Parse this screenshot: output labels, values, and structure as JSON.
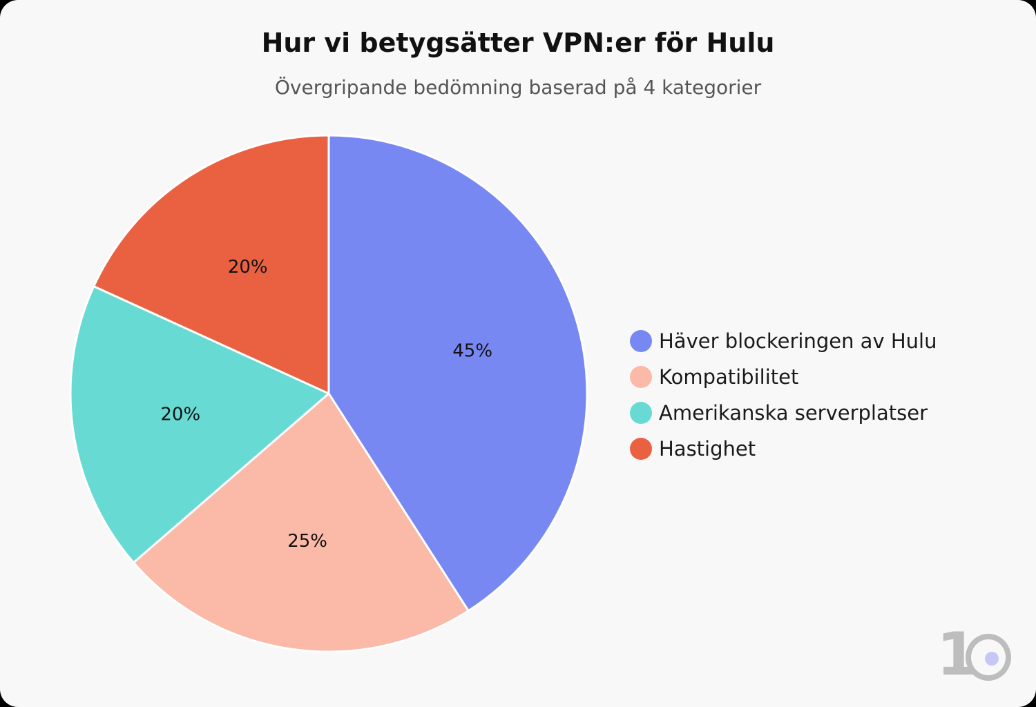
{
  "title": "Hur vi betygsätter VPN:er för Hulu",
  "subtitle": "Övergripande bedömning baserad på 4 kategorier",
  "chart_data": {
    "type": "pie",
    "title": "Hur vi betygsätter VPN:er för Hulu",
    "subtitle": "Övergripande bedömning baserad på 4 kategorier",
    "unit": "%",
    "start": "12 o'clock",
    "direction": "clockwise",
    "legend_position": "right",
    "slices": [
      {
        "label": "Häver blockeringen av Hulu",
        "value": 45,
        "display": "45%",
        "color": "#7888f2"
      },
      {
        "label": "Kompatibilitet",
        "value": 25,
        "display": "25%",
        "color": "#fbb9a7"
      },
      {
        "label": "Amerikanska serverplatser",
        "value": 20,
        "display": "20%",
        "color": "#67dbd3"
      },
      {
        "label": "Hastighet",
        "value": 20,
        "display": "20%",
        "color": "#ea6142"
      }
    ]
  },
  "logo": {
    "text": "10"
  }
}
